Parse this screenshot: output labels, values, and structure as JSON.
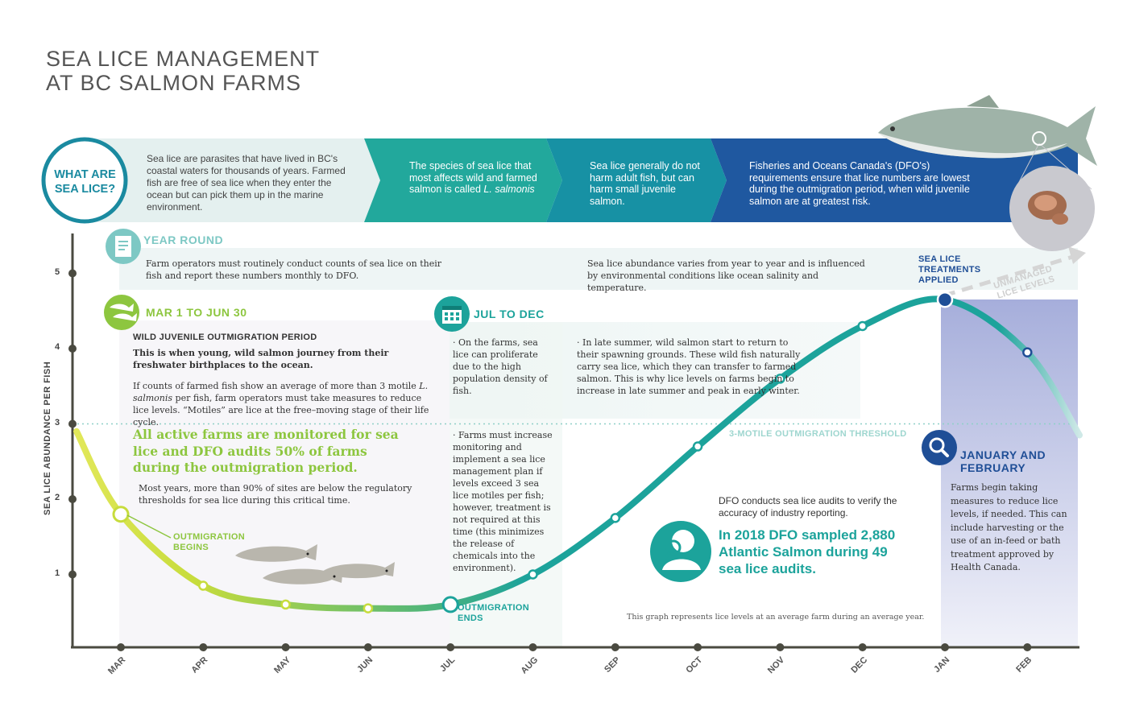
{
  "title": {
    "line1": "SEA LICE MANAGEMENT",
    "line2": "AT BC SALMON FARMS"
  },
  "banner": {
    "circle_label_1": "WHAT ARE",
    "circle_label_2": "SEA LICE?",
    "panel1": "Sea lice are parasites that have lived in BC's coastal waters for thousands of years. Farmed fish are free of sea lice when they enter the ocean but can pick them up in the marine environment.",
    "panel2_a": "The species of sea lice that most affects wild and farmed salmon is called",
    "panel2_b": "L. salmonis",
    "panel3": "Sea lice generally do not harm adult fish, but can harm small juvenile salmon.",
    "panel4": "Fisheries and Oceans Canada's (DFO's) requirements ensure that lice numbers are lowest during the outmigration period, when wild juvenile salmon are at greatest risk."
  },
  "year_round": {
    "heading": "YEAR ROUND",
    "text_left": "Farm operators must routinely conduct counts of sea lice on their fish and report these numbers monthly to DFO.",
    "text_right": "Sea lice abundance varies from year to year and is influenced by environmental conditions like ocean salinity and temperature."
  },
  "outmigration": {
    "heading": "MAR 1 TO JUN 30",
    "subheading": "WILD JUVENILE OUTMIGRATION PERIOD",
    "bold_text": "This is when young, wild salmon journey from their freshwater birthplaces to the ocean.",
    "text1_a": "If counts of farmed fish show an average of more than 3 motile",
    "text1_b": "L. salmonis",
    "text1_c": "per fish, farm operators must take measures to reduce lice levels. “Motiles” are lice at the free–moving stage of their life cycle.",
    "green_text": "All active farms are monitored for sea lice and DFO audits 50% of farms during the outmigration period.",
    "text2": "Most years, more than 90% of sites are below the regulatory thresholds for sea lice during this critical time."
  },
  "jul_dec": {
    "heading": "JUL TO DEC",
    "bullet1": "On the farms, sea lice can proliferate due to the high population density of fish.",
    "bullet2": "Farms must increase monitoring and implement a sea lice management plan if levels exceed 3 sea lice motiles per fish; however, treatment is not required at this time (this minimizes the release of chemicals into the environment).",
    "bullet3": "In late summer, wild salmon start to return to their spawning grounds. These wild fish naturally carry sea lice, which they can transfer to farmed salmon. This is why lice levels on farms begin to increase in late summer and peak in early winter."
  },
  "audit": {
    "text": "DFO conducts sea lice audits to verify the accuracy of industry reporting.",
    "big": "In 2018 DFO sampled 2,880 Atlantic Salmon during 49 sea lice audits."
  },
  "jan_feb": {
    "heading_1": "JANUARY AND",
    "heading_2": "FEBRUARY",
    "text": "Farms begin taking measures to reduce lice levels, if needed. This can include harvesting or the use of an in-feed or bath treatment approved by Health Canada."
  },
  "annotations": {
    "outmigration_begins_1": "OUTMIGRATION",
    "outmigration_begins_2": "BEGINS",
    "outmigration_ends_1": "OUTMIGRATION",
    "outmigration_ends_2": "ENDS",
    "treatments_1": "SEA LICE",
    "treatments_2": "TREATMENTS",
    "treatments_3": "APPLIED",
    "unmanaged_1": "UNMANAGED",
    "unmanaged_2": "LICE LEVELS",
    "threshold": "3-MOTILE OUTMIGRATION THRESHOLD",
    "footnote": "This graph represents lice levels at an average farm during an average year."
  },
  "colors": {
    "teal": "#1ca39b",
    "green": "#8dc63f",
    "navy": "#1f4e96",
    "axis": "#4a4a40"
  },
  "chart_data": {
    "type": "line",
    "ylabel": "SEA LICE ABUNDANCE PER FISH",
    "ylim": [
      0,
      5.5
    ],
    "yticks": [
      "1",
      "2",
      "3",
      "4",
      "5"
    ],
    "categories": [
      "MAR",
      "APR",
      "MAY",
      "JUN",
      "JUL",
      "AUG",
      "SEP",
      "OCT",
      "NOV",
      "DEC",
      "JAN",
      "FEB"
    ],
    "values": [
      1.8,
      0.85,
      0.6,
      0.55,
      0.6,
      1.0,
      1.75,
      2.7,
      3.6,
      4.3,
      4.65,
      3.95
    ],
    "threshold": 3,
    "grid": false
  }
}
